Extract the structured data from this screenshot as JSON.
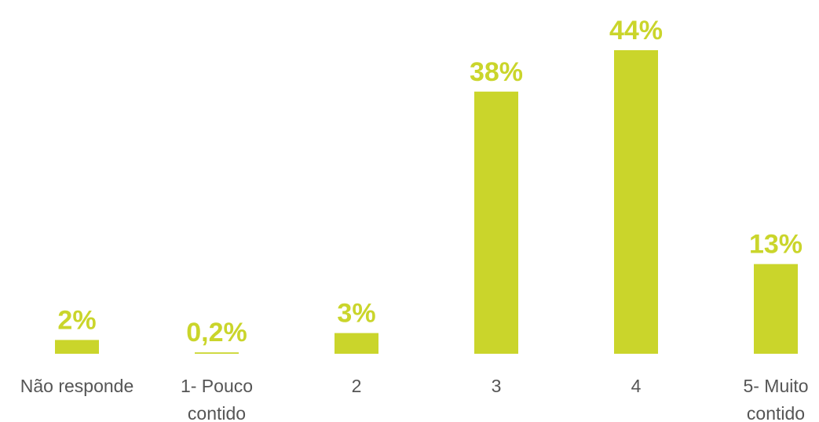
{
  "colors": {
    "bar": "#cad52b",
    "label": "#555555"
  },
  "chart_data": {
    "type": "bar",
    "title": "",
    "xlabel": "",
    "ylabel": "",
    "categories": [
      [
        "Não responde"
      ],
      [
        "1- Pouco",
        "contido"
      ],
      [
        "2"
      ],
      [
        "3"
      ],
      [
        "4"
      ],
      [
        "5- Muito",
        "contido"
      ]
    ],
    "values": [
      2,
      0.2,
      3,
      38,
      44,
      13
    ],
    "value_labels": [
      "2%",
      "0,2%",
      "3%",
      "38%",
      "44%",
      "13%"
    ],
    "unit": "%",
    "ylim": [
      0,
      44
    ],
    "grid": false,
    "legend": "none"
  }
}
